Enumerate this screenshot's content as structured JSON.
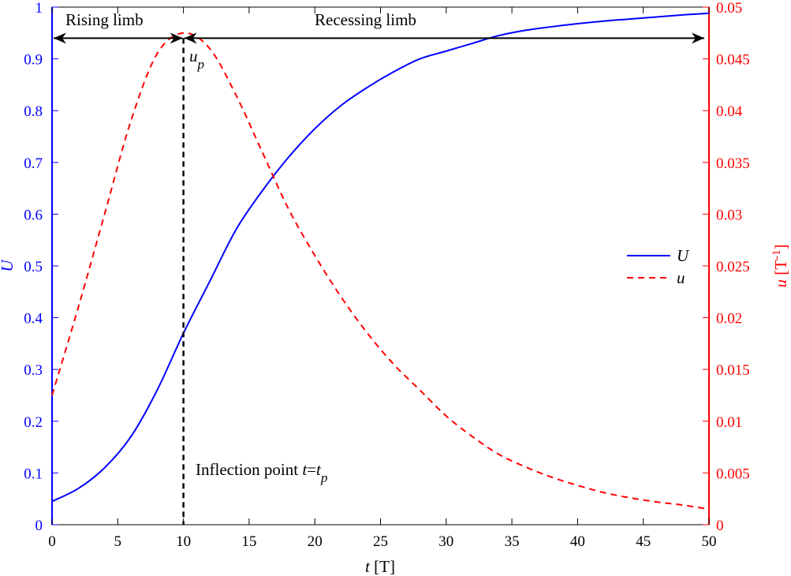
{
  "chart_data": {
    "type": "line",
    "xlabel": {
      "var": "t",
      "unit": " [T]"
    },
    "ylabel_left": "U",
    "ylabel_right": {
      "var": "u",
      "unit": " [T",
      "sup": "-1",
      "close": "]"
    },
    "x_range": [
      0,
      50
    ],
    "y_left_range": [
      0,
      1
    ],
    "y_right_range": [
      0,
      0.05
    ],
    "x_ticks": [
      "0",
      "5",
      "10",
      "15",
      "20",
      "25",
      "30",
      "35",
      "40",
      "45",
      "50"
    ],
    "y_left_ticks": [
      "0",
      "0.1",
      "0.2",
      "0.3",
      "0.4",
      "0.5",
      "0.6",
      "0.7",
      "0.8",
      "0.9",
      "1"
    ],
    "y_right_ticks": [
      "0",
      "0.005",
      "0.01",
      "0.015",
      "0.02",
      "0.025",
      "0.03",
      "0.035",
      "0.04",
      "0.045",
      "0.05"
    ],
    "grid": false,
    "legend_position": "right",
    "colors": {
      "U": "#0000ff",
      "u": "#ff0000",
      "axis_left": "#0000ff",
      "axis_right": "#ff0000",
      "annotation": "#000000"
    },
    "series": [
      {
        "name": "U",
        "axis": "left",
        "style": "solid",
        "x": [
          0,
          2,
          4,
          6,
          8,
          10,
          12,
          14,
          16,
          18,
          20,
          22,
          24,
          26,
          28,
          30,
          32,
          34,
          36,
          38,
          40,
          42,
          44,
          46,
          48,
          50
        ],
        "y": [
          0.045,
          0.07,
          0.11,
          0.17,
          0.26,
          0.37,
          0.47,
          0.57,
          0.645,
          0.71,
          0.765,
          0.81,
          0.845,
          0.875,
          0.9,
          0.915,
          0.93,
          0.945,
          0.955,
          0.962,
          0.968,
          0.973,
          0.977,
          0.981,
          0.985,
          0.988
        ]
      },
      {
        "name": "u",
        "axis": "right",
        "style": "dashed",
        "x": [
          0,
          2,
          4,
          6,
          8,
          10,
          12,
          14,
          16,
          18,
          20,
          22,
          24,
          26,
          28,
          30,
          32,
          34,
          36,
          38,
          40,
          42,
          44,
          46,
          48,
          50
        ],
        "y": [
          0.0125,
          0.021,
          0.03,
          0.039,
          0.0455,
          0.0475,
          0.046,
          0.0415,
          0.036,
          0.0305,
          0.026,
          0.022,
          0.0185,
          0.0155,
          0.013,
          0.0105,
          0.0085,
          0.0068,
          0.0056,
          0.0046,
          0.0038,
          0.0031,
          0.0026,
          0.0022,
          0.0019,
          0.0015
        ]
      }
    ],
    "annotations": {
      "rising_limb": "Rising limb",
      "recessing_limb": "Recessing limb",
      "peak_label": {
        "var": "u",
        "sub": "p"
      },
      "inflection": {
        "text": "Inflection point ",
        "var": "t",
        "eq": "=",
        "var2": "t",
        "sub": "p"
      },
      "inflection_x": 10,
      "arrow_y_right": 0.047
    }
  }
}
